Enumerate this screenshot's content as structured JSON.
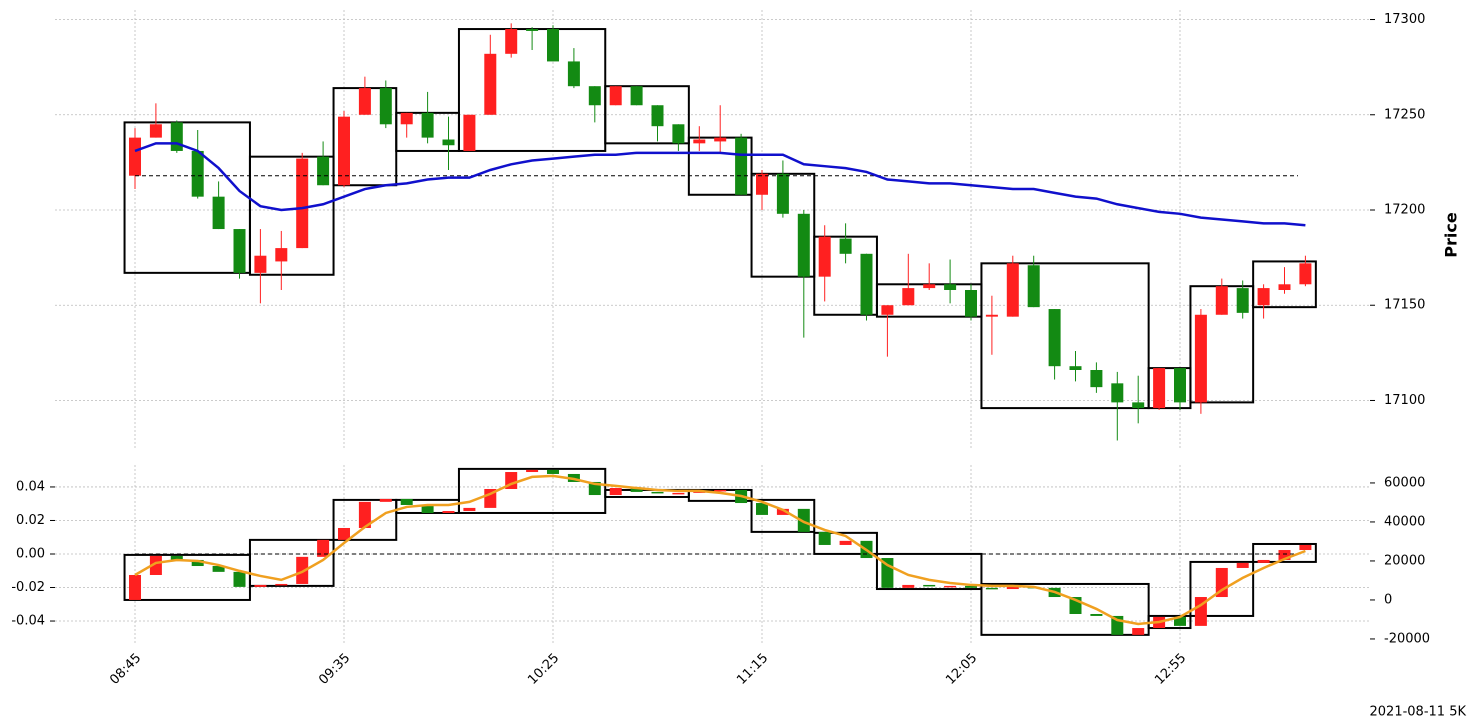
{
  "chart_data": [
    {
      "type": "candlestick",
      "ylabel": "Price",
      "up_color": "#ff2020",
      "down_color": "#138a13",
      "grid": true,
      "categories": [
        "08:45",
        null,
        null,
        null,
        null,
        null,
        null,
        null,
        null,
        null,
        "09:35",
        null,
        null,
        null,
        null,
        null,
        null,
        null,
        null,
        null,
        "10:25",
        null,
        null,
        null,
        null,
        null,
        null,
        null,
        null,
        null,
        "11:15",
        null,
        null,
        null,
        null,
        null,
        null,
        null,
        null,
        null,
        "12:05",
        null,
        null,
        null,
        null,
        null,
        null,
        null,
        null,
        null,
        "12:55",
        null,
        null,
        null,
        null,
        null,
        null
      ],
      "open": [
        17218,
        17238,
        17246,
        17231,
        17207,
        17190,
        17167,
        17173,
        17180,
        17228,
        17213,
        17250,
        17264,
        17245,
        17251,
        17237,
        17231,
        17250,
        17282,
        17295,
        17295,
        17278,
        17265,
        17255,
        17265,
        17255,
        17245,
        17235,
        17236,
        17238,
        17208,
        17219,
        17198,
        17165,
        17185,
        17177,
        17145,
        17150,
        17159,
        17161,
        17158,
        17144,
        17144,
        17171,
        17148,
        17118,
        17116,
        17109,
        17099,
        17096,
        17117,
        17099,
        17145,
        17159,
        17150,
        17158,
        17161
      ],
      "high": [
        17243,
        17256,
        17247,
        17242,
        17215,
        17190,
        17190,
        17189,
        17230,
        17236,
        17252,
        17270,
        17268,
        17251,
        17262,
        17249,
        17250,
        17292,
        17298,
        17296,
        17297,
        17285,
        17265,
        17265,
        17265,
        17255,
        17245,
        17244,
        17255,
        17240,
        17221,
        17226,
        17200,
        17192,
        17193,
        17177,
        17150,
        17177,
        17172,
        17174,
        17161,
        17155,
        17176,
        17176,
        17148,
        17126,
        17120,
        17115,
        17113,
        17117,
        17117,
        17148,
        17164,
        17163,
        17161,
        17170,
        17176
      ],
      "low": [
        17211,
        17238,
        17230,
        17206,
        17190,
        17164,
        17151,
        17158,
        17180,
        17213,
        17212,
        17250,
        17243,
        17238,
        17235,
        17221,
        17231,
        17250,
        17280,
        17284,
        17278,
        17264,
        17246,
        17255,
        17255,
        17236,
        17231,
        17231,
        17230,
        17208,
        17200,
        17196,
        17133,
        17152,
        17172,
        17142,
        17123,
        17150,
        17158,
        17151,
        17142,
        17124,
        17144,
        17149,
        17111,
        17110,
        17104,
        17079,
        17088,
        17095,
        17095,
        17093,
        17145,
        17143,
        17143,
        17156,
        17160
      ],
      "close": [
        17238,
        17245,
        17231,
        17207,
        17190,
        17167,
        17176,
        17180,
        17227,
        17213,
        17249,
        17264,
        17245,
        17251,
        17238,
        17234,
        17250,
        17282,
        17295,
        17294,
        17278,
        17265,
        17255,
        17265,
        17255,
        17244,
        17235,
        17237,
        17238,
        17208,
        17219,
        17198,
        17165,
        17186,
        17177,
        17145,
        17150,
        17159,
        17161,
        17158,
        17144,
        17145,
        17172,
        17149,
        17118,
        17116,
        17107,
        17099,
        17096,
        17117,
        17099,
        17145,
        17160,
        17146,
        17159,
        17161,
        17172
      ],
      "ma": {
        "color": "#1010cc",
        "values": [
          17231,
          17235,
          17235,
          17231,
          17222,
          17210,
          17202,
          17200,
          17201,
          17203,
          17207,
          17211,
          17213,
          17214,
          17216,
          17217,
          17217,
          17221,
          17224,
          17226,
          17227,
          17228,
          17229,
          17229,
          17230,
          17230,
          17230,
          17230,
          17230,
          17229,
          17229,
          17229,
          17224,
          17223,
          17222,
          17220,
          17216,
          17215,
          17214,
          17214,
          17213,
          17212,
          17211,
          17211,
          17209,
          17207,
          17206,
          17203,
          17201,
          17199,
          17198,
          17196,
          17195,
          17194,
          17193,
          17193,
          17192
        ]
      },
      "hline": 17218,
      "boxes": [
        {
          "start": 0,
          "end": 5,
          "high": 17246,
          "low": 17167
        },
        {
          "start": 6,
          "end": 9,
          "high": 17228,
          "low": 17166
        },
        {
          "start": 10,
          "end": 12,
          "high": 17264,
          "low": 17213
        },
        {
          "start": 13,
          "end": 15,
          "high": 17251,
          "low": 17231
        },
        {
          "start": 16,
          "end": 22,
          "high": 17295,
          "low": 17231
        },
        {
          "start": 23,
          "end": 26,
          "high": 17265,
          "low": 17235
        },
        {
          "start": 27,
          "end": 29,
          "high": 17238,
          "low": 17208
        },
        {
          "start": 30,
          "end": 32,
          "high": 17219,
          "low": 17165
        },
        {
          "start": 33,
          "end": 35,
          "high": 17186,
          "low": 17145
        },
        {
          "start": 36,
          "end": 40,
          "high": 17161,
          "low": 17144
        },
        {
          "start": 41,
          "end": 48,
          "high": 17172,
          "low": 17096
        },
        {
          "start": 49,
          "end": 50,
          "high": 17117,
          "low": 17096
        },
        {
          "start": 51,
          "end": 53,
          "high": 17160,
          "low": 17099
        },
        {
          "start": 54,
          "end": 56,
          "high": 17173,
          "low": 17149
        }
      ],
      "ylim": [
        17074,
        17305
      ],
      "yticks": [
        17100,
        17150,
        17200,
        17250,
        17300
      ]
    },
    {
      "type": "candlestick",
      "up_color": "#ff2020",
      "down_color": "#138a13",
      "grid": true,
      "open": [
        0,
        12800,
        22600,
        20500,
        17400,
        14400,
        6700,
        7700,
        8200,
        22100,
        30800,
        36900,
        50300,
        51800,
        48700,
        44600,
        45600,
        47200,
        56900,
        65600,
        66700,
        64600,
        60500,
        53800,
        57400,
        55400,
        54900,
        54900,
        55900,
        56400,
        49700,
        43600,
        46700,
        34900,
        28200,
        30300,
        21500,
        6200,
        7700,
        7200,
        7200,
        6200,
        5600,
        6700,
        6200,
        1500,
        -7200,
        -8200,
        -17900,
        -14400,
        -8700,
        -13300,
        1500,
        16400,
        19000,
        20500,
        25600
      ],
      "close": [
        12800,
        22600,
        20500,
        17400,
        14400,
        6700,
        7700,
        8200,
        22100,
        30800,
        36900,
        50300,
        51800,
        48700,
        44600,
        45600,
        47200,
        56900,
        65600,
        66700,
        64600,
        60500,
        53800,
        57400,
        55400,
        54900,
        54900,
        55900,
        56400,
        49700,
        43600,
        46700,
        34900,
        28200,
        30300,
        21500,
        6200,
        7700,
        7200,
        7200,
        6200,
        5600,
        6700,
        6200,
        1500,
        -7200,
        -8200,
        -17900,
        -14400,
        -8700,
        -13300,
        1500,
        16400,
        19000,
        20500,
        25600,
        28200
      ],
      "line": {
        "color": "#f0a020",
        "values": [
          12800,
          19000,
          20500,
          20000,
          17900,
          14900,
          12300,
          10300,
          14400,
          20500,
          29200,
          37400,
          44600,
          47700,
          48700,
          48700,
          50300,
          54400,
          59500,
          63100,
          63600,
          62000,
          59500,
          58500,
          57400,
          56400,
          55900,
          55900,
          54900,
          53300,
          50300,
          46200,
          40000,
          35900,
          32800,
          25600,
          17900,
          12800,
          10300,
          8700,
          7700,
          7200,
          7200,
          6700,
          4100,
          0,
          -4600,
          -10300,
          -12300,
          -11300,
          -8700,
          -2600,
          5100,
          11300,
          16400,
          21000,
          25100
        ]
      },
      "hline": 0,
      "boxes": [
        {
          "start": 0,
          "end": 5,
          "high": 23100,
          "low": 0
        },
        {
          "start": 6,
          "end": 9,
          "high": 30800,
          "low": 7200
        },
        {
          "start": 10,
          "end": 12,
          "high": 51300,
          "low": 30800
        },
        {
          "start": 13,
          "end": 15,
          "high": 51300,
          "low": 44600
        },
        {
          "start": 16,
          "end": 22,
          "high": 67200,
          "low": 44600
        },
        {
          "start": 23,
          "end": 26,
          "high": 56400,
          "low": 52800
        },
        {
          "start": 27,
          "end": 29,
          "high": 56400,
          "low": 50800
        },
        {
          "start": 30,
          "end": 32,
          "high": 51300,
          "low": 34900
        },
        {
          "start": 33,
          "end": 35,
          "high": 34400,
          "low": 23600
        },
        {
          "start": 36,
          "end": 40,
          "high": 23600,
          "low": 5600
        },
        {
          "start": 41,
          "end": 48,
          "high": 8200,
          "low": -17900
        },
        {
          "start": 49,
          "end": 50,
          "high": -8200,
          "low": -14400
        },
        {
          "start": 51,
          "end": 53,
          "high": 19500,
          "low": -8200
        },
        {
          "start": 54,
          "end": 56,
          "high": 28700,
          "low": 19500
        }
      ],
      "ylim": [
        -0.0543,
        0.0531
      ],
      "yticks": [
        -0.04,
        -0.02,
        {
          "value": 0,
          "label": "0.00"
        },
        0.02,
        0.04
      ],
      "y2lim": [
        -23100,
        69200
      ],
      "y2ticks": [
        -20000,
        0,
        20000,
        40000,
        60000
      ]
    }
  ],
  "footer": "2021-08-11 5K"
}
